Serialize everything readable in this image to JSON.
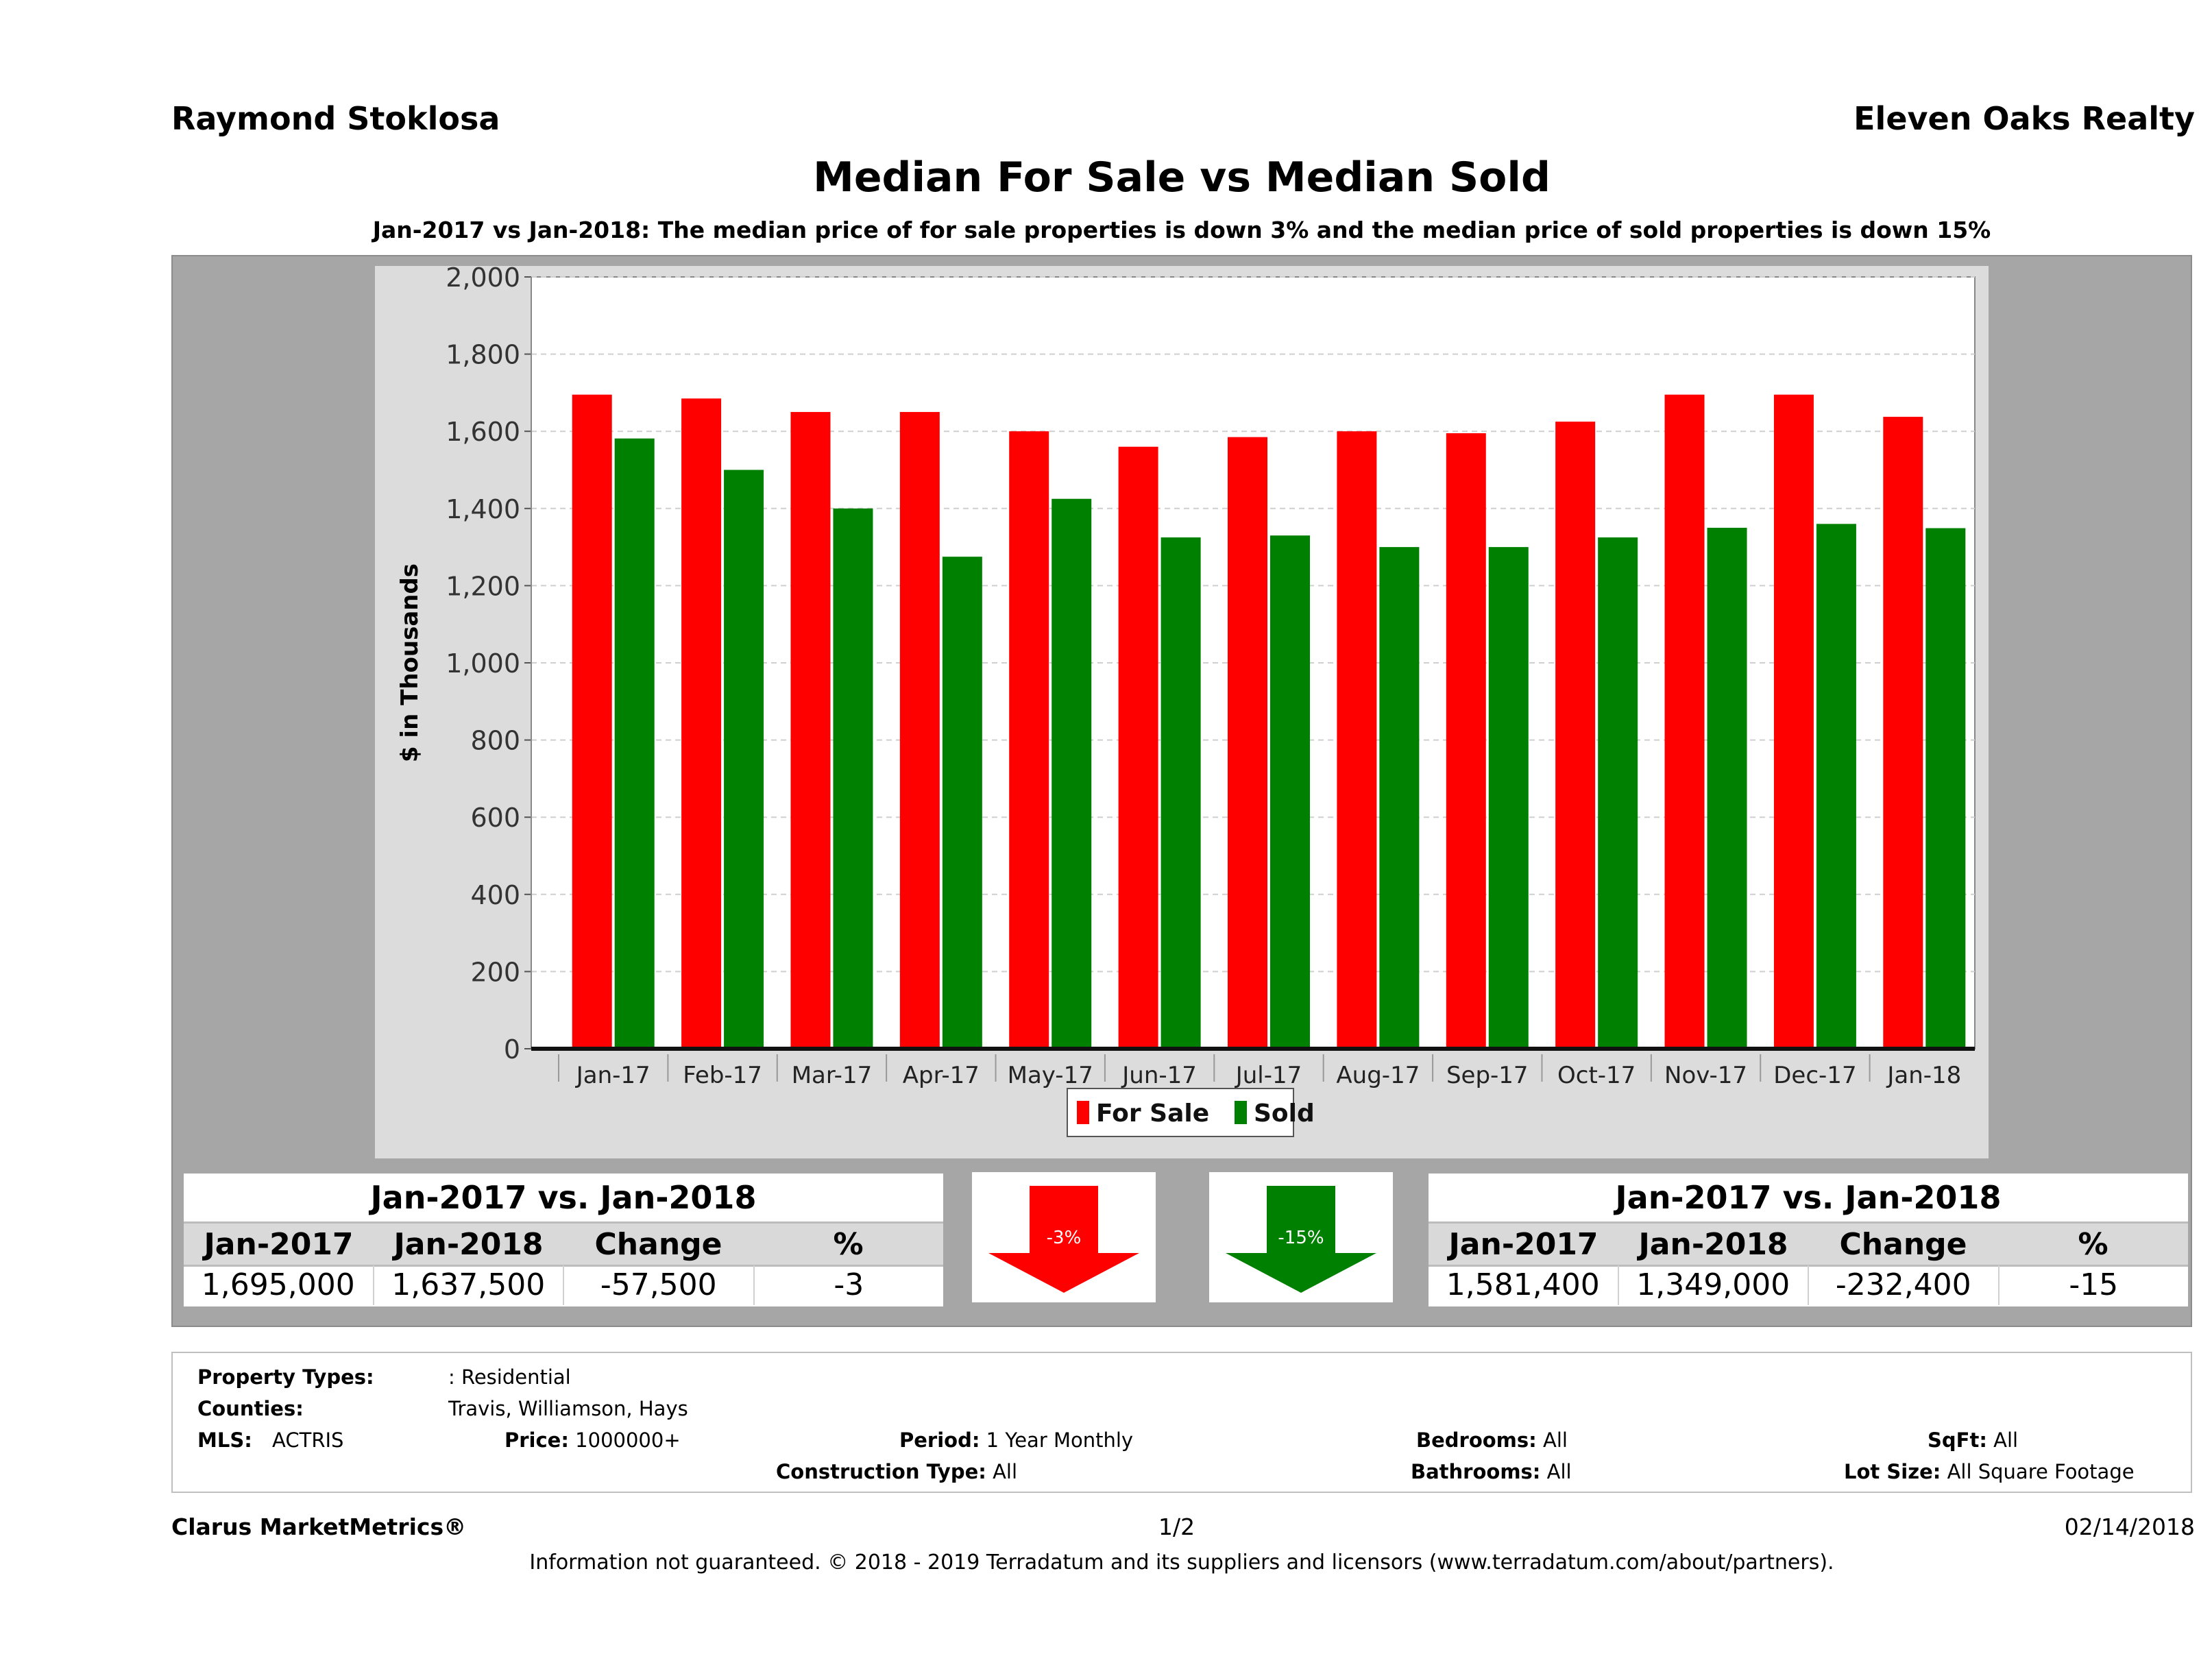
{
  "header": {
    "agent": "Raymond Stoklosa",
    "company": "Eleven Oaks Realty",
    "title": "Median For Sale vs Median Sold",
    "subtitle": "Jan-2017 vs Jan-2018: The median price of for sale properties is down 3% and the median price of sold properties is down 15%"
  },
  "chart_data": {
    "type": "bar",
    "title": "Median For Sale vs Median Sold",
    "ylabel": "$ in Thousands",
    "xlabel": "",
    "ylim": [
      0,
      2000
    ],
    "yticks": [
      "0",
      "200",
      "400",
      "600",
      "800",
      "1,000",
      "1,200",
      "1,400",
      "1,600",
      "1,800",
      "2,000"
    ],
    "grid": true,
    "legend_position": "bottom",
    "categories": [
      "Jan-17",
      "Feb-17",
      "Mar-17",
      "Apr-17",
      "May-17",
      "Jun-17",
      "Jul-17",
      "Aug-17",
      "Sep-17",
      "Oct-17",
      "Nov-17",
      "Dec-17",
      "Jan-18"
    ],
    "series": [
      {
        "name": "For Sale",
        "color": "#ff0000",
        "values": [
          1695,
          1685,
          1650,
          1650,
          1600,
          1560,
          1585,
          1600,
          1595,
          1625,
          1695,
          1695,
          1637.5
        ]
      },
      {
        "name": "Sold",
        "color": "#008000",
        "values": [
          1581.4,
          1500,
          1400,
          1275,
          1425,
          1325,
          1330,
          1300,
          1300,
          1325,
          1350,
          1360,
          1349
        ]
      }
    ]
  },
  "summary": {
    "for_sale": {
      "title": "Jan-2017 vs. Jan-2018",
      "headers": [
        "Jan-2017",
        "Jan-2018",
        "Change",
        "%"
      ],
      "values": [
        "1,695,000",
        "1,637,500",
        "-57,500",
        "-3"
      ],
      "badge": "-3%",
      "badge_color": "#ff0000"
    },
    "sold": {
      "title": "Jan-2017 vs. Jan-2018",
      "headers": [
        "Jan-2017",
        "Jan-2018",
        "Change",
        "%"
      ],
      "values": [
        "1,581,400",
        "1,349,000",
        "-232,400",
        "-15"
      ],
      "badge": "-15%",
      "badge_color": "#008000"
    }
  },
  "info": {
    "property_types_label": "Property Types:",
    "property_types_value": ": Residential",
    "counties_label": "Counties:",
    "counties_value": "Travis, Williamson, Hays",
    "mls_label": "MLS:",
    "mls_value": "ACTRIS",
    "price_label": "Price:",
    "price_value": "1000000+",
    "period_label": "Period:",
    "period_value": "1 Year Monthly",
    "construction_label": "Construction Type:",
    "construction_value": "All",
    "bedrooms_label": "Bedrooms:",
    "bedrooms_value": "All",
    "bathrooms_label": "Bathrooms:",
    "bathrooms_value": "All",
    "sqft_label": "SqFt:",
    "sqft_value": "All",
    "lot_label": "Lot Size:",
    "lot_value": "All Square Footage"
  },
  "footer": {
    "brand": "Clarus MarketMetrics®",
    "page": "1/2",
    "date": "02/14/2018",
    "disclaimer": "Information not guaranteed. © 2018 - 2019 Terradatum and its suppliers and licensors (www.terradatum.com/about/partners)."
  }
}
